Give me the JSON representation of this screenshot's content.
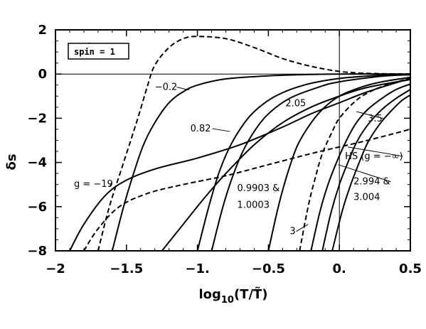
{
  "chart_data": {
    "type": "line",
    "title": "",
    "xlabel_base": "log",
    "xlabel_sub": "10",
    "xlabel_arg": "(T/T̃)",
    "ylabel": "δs",
    "xlim": [
      -2,
      0.5
    ],
    "ylim": [
      -8,
      2
    ],
    "x_ticks": [
      -2,
      -1.5,
      -1,
      -0.5,
      0,
      0.5
    ],
    "x_tick_labels": [
      "−2",
      "−1.5",
      "−1.",
      "−0.5",
      "0.",
      "0.5"
    ],
    "y_ticks": [
      -8,
      -6,
      -4,
      -2,
      0,
      2
    ],
    "y_tick_labels": [
      "−8",
      "−6",
      "−4",
      "−2",
      "0",
      "2"
    ],
    "reference_lines": {
      "y": 0,
      "x": 0
    },
    "legend_box": "spin = 1",
    "series": [
      {
        "id": "g1",
        "style": "dashed",
        "points": [
          [
            -1.7,
            -8
          ],
          [
            -1.62,
            -6
          ],
          [
            -1.52,
            -4
          ],
          [
            -1.42,
            -2
          ],
          [
            -1.35,
            -0.5
          ],
          [
            -1.3,
            0.4
          ],
          [
            -1.2,
            1.2
          ],
          [
            -1.1,
            1.6
          ],
          [
            -1.0,
            1.7
          ],
          [
            -0.8,
            1.6
          ],
          [
            -0.6,
            1.2
          ],
          [
            -0.4,
            0.7
          ],
          [
            -0.2,
            0.35
          ],
          [
            0,
            0.12
          ],
          [
            0.2,
            0.03
          ],
          [
            0.5,
            0.0
          ]
        ]
      },
      {
        "id": "gm02",
        "style": "solid",
        "points": [
          [
            -1.6,
            -8
          ],
          [
            -1.52,
            -6
          ],
          [
            -1.45,
            -4.5
          ],
          [
            -1.38,
            -3.2
          ],
          [
            -1.3,
            -2.2
          ],
          [
            -1.2,
            -1.3
          ],
          [
            -1.1,
            -0.8
          ],
          [
            -1.0,
            -0.5
          ],
          [
            -0.8,
            -0.22
          ],
          [
            -0.5,
            -0.08
          ],
          [
            -0.2,
            -0.02
          ],
          [
            0,
            0
          ],
          [
            0.5,
            0
          ]
        ]
      },
      {
        "id": "gm19",
        "style": "solid",
        "points": [
          [
            -1.9,
            -8
          ],
          [
            -1.8,
            -6.8
          ],
          [
            -1.65,
            -5.5
          ],
          [
            -1.5,
            -4.8
          ],
          [
            -1.3,
            -4.3
          ],
          [
            -1.0,
            -3.8
          ],
          [
            -0.7,
            -3.2
          ],
          [
            -0.4,
            -2.4
          ],
          [
            -0.2,
            -1.8
          ],
          [
            0,
            -1.3
          ],
          [
            0.2,
            -0.8
          ],
          [
            0.5,
            -0.2
          ]
        ]
      },
      {
        "id": "hs",
        "style": "dashed",
        "points": [
          [
            -1.8,
            -8
          ],
          [
            -1.7,
            -7
          ],
          [
            -1.55,
            -6
          ],
          [
            -1.35,
            -5.4
          ],
          [
            -1.1,
            -5.0
          ],
          [
            -0.8,
            -4.6
          ],
          [
            -0.5,
            -4.1
          ],
          [
            -0.2,
            -3.6
          ],
          [
            0,
            -3.3
          ],
          [
            0.2,
            -3.0
          ],
          [
            0.5,
            -2.5
          ]
        ]
      },
      {
        "id": "g082",
        "style": "solid",
        "points": [
          [
            -1.25,
            -8
          ],
          [
            -1.1,
            -6.8
          ],
          [
            -0.95,
            -5.6
          ],
          [
            -0.8,
            -4.5
          ],
          [
            -0.6,
            -3.2
          ],
          [
            -0.4,
            -2.2
          ],
          [
            -0.2,
            -1.5
          ],
          [
            0,
            -1.0
          ],
          [
            0.2,
            -0.6
          ],
          [
            0.5,
            -0.25
          ]
        ]
      },
      {
        "id": "g09903",
        "style": "solid",
        "points": [
          [
            -1.0,
            -8
          ],
          [
            -0.92,
            -6
          ],
          [
            -0.85,
            -4.5
          ],
          [
            -0.78,
            -3.4
          ],
          [
            -0.7,
            -2.5
          ],
          [
            -0.6,
            -1.7
          ],
          [
            -0.45,
            -1.0
          ],
          [
            -0.25,
            -0.5
          ],
          [
            0,
            -0.2
          ],
          [
            0.3,
            -0.05
          ],
          [
            0.5,
            0
          ]
        ]
      },
      {
        "id": "g10003",
        "style": "solid",
        "points": [
          [
            -0.9,
            -8
          ],
          [
            -0.82,
            -6
          ],
          [
            -0.75,
            -4.6
          ],
          [
            -0.68,
            -3.5
          ],
          [
            -0.6,
            -2.6
          ],
          [
            -0.5,
            -1.8
          ],
          [
            -0.35,
            -1.1
          ],
          [
            -0.15,
            -0.6
          ],
          [
            0,
            -0.35
          ],
          [
            0.3,
            -0.1
          ],
          [
            0.5,
            -0.03
          ]
        ]
      },
      {
        "id": "g205",
        "style": "solid",
        "points": [
          [
            -0.5,
            -8
          ],
          [
            -0.43,
            -6
          ],
          [
            -0.37,
            -4.6
          ],
          [
            -0.3,
            -3.3
          ],
          [
            -0.22,
            -2.4
          ],
          [
            -0.12,
            -1.6
          ],
          [
            0,
            -1.0
          ],
          [
            0.15,
            -0.6
          ],
          [
            0.3,
            -0.35
          ],
          [
            0.5,
            -0.15
          ]
        ]
      },
      {
        "id": "g3",
        "style": "dashed",
        "points": [
          [
            -0.28,
            -8
          ],
          [
            -0.22,
            -6
          ],
          [
            -0.17,
            -4.7
          ],
          [
            -0.12,
            -3.6
          ],
          [
            -0.05,
            -2.6
          ],
          [
            0,
            -2.0
          ],
          [
            0.1,
            -1.3
          ],
          [
            0.2,
            -0.85
          ],
          [
            0.35,
            -0.45
          ],
          [
            0.5,
            -0.2
          ]
        ]
      },
      {
        "id": "g2994",
        "style": "solid",
        "points": [
          [
            -0.2,
            -8
          ],
          [
            -0.14,
            -6.3
          ],
          [
            -0.08,
            -5.0
          ],
          [
            -0.02,
            -4.0
          ],
          [
            0.05,
            -3.0
          ],
          [
            0.12,
            -2.2
          ],
          [
            0.2,
            -1.6
          ],
          [
            0.3,
            -1.1
          ],
          [
            0.4,
            -0.7
          ],
          [
            0.5,
            -0.45
          ]
        ]
      },
      {
        "id": "g3004",
        "style": "solid",
        "points": [
          [
            -0.12,
            -8
          ],
          [
            -0.06,
            -6.3
          ],
          [
            0,
            -5.0
          ],
          [
            0.06,
            -4.0
          ],
          [
            0.12,
            -3.1
          ],
          [
            0.2,
            -2.3
          ],
          [
            0.3,
            -1.6
          ],
          [
            0.4,
            -1.1
          ],
          [
            0.5,
            -0.7
          ]
        ]
      },
      {
        "id": "g35",
        "style": "solid",
        "points": [
          [
            -0.05,
            -8
          ],
          [
            0.02,
            -6.2
          ],
          [
            0.08,
            -5.0
          ],
          [
            0.14,
            -4.0
          ],
          [
            0.2,
            -3.1
          ],
          [
            0.28,
            -2.3
          ],
          [
            0.36,
            -1.7
          ],
          [
            0.44,
            -1.2
          ],
          [
            0.5,
            -0.95
          ]
        ]
      }
    ],
    "annotations": [
      {
        "id": "ann-g1",
        "text": "1",
        "x": -1.78,
        "y": 1.1,
        "target": [
          -1.58,
          1.15
        ]
      },
      {
        "id": "ann-gm02",
        "text": "−0.2",
        "x": -1.3,
        "y": -0.72,
        "target": [
          -1.06,
          -0.72
        ]
      },
      {
        "id": "ann-g082",
        "text": "0.82",
        "x": -1.05,
        "y": -2.6,
        "target": [
          -0.77,
          -2.6
        ]
      },
      {
        "id": "ann-gm19",
        "text": "g = −19",
        "x": -1.87,
        "y": -5.1,
        "target": [
          -1.62,
          -5.1
        ]
      },
      {
        "id": "ann-g099-a",
        "text": "0.9903 &",
        "x": -0.72,
        "y": -5.3,
        "target": null
      },
      {
        "id": "ann-g099-b",
        "text": "1.0003",
        "x": -0.72,
        "y": -6.05,
        "target": null
      },
      {
        "id": "ann-g205",
        "text": "2.05",
        "x": -0.38,
        "y": -1.45,
        "target": null
      },
      {
        "id": "ann-g35",
        "text": "3.5",
        "x": 0.2,
        "y": -2.15,
        "target": [
          0.12,
          -1.7
        ]
      },
      {
        "id": "ann-hs",
        "text": "HS (g = −∞)",
        "x": 0.04,
        "y": -3.85,
        "target": [
          0.06,
          -3.3
        ]
      },
      {
        "id": "ann-g2994-a",
        "text": "2.994 &",
        "x": 0.1,
        "y": -5.0,
        "target": [
          -0.01,
          -4.1
        ]
      },
      {
        "id": "ann-g2994-b",
        "text": "3.004",
        "x": 0.1,
        "y": -5.7,
        "target": null
      },
      {
        "id": "ann-g3",
        "text": "3",
        "x": -0.35,
        "y": -7.25,
        "target": [
          -0.22,
          -6.8
        ]
      }
    ]
  }
}
